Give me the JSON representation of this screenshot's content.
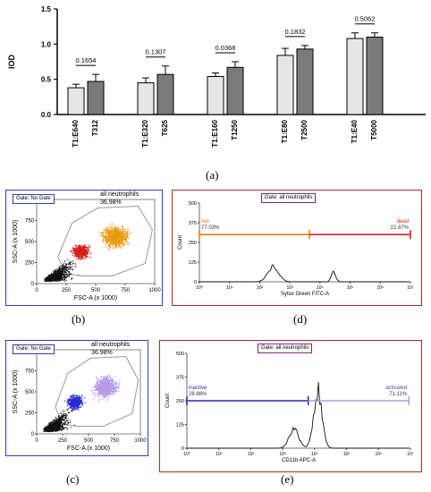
{
  "panel_letters": {
    "a": "(a)",
    "b": "(b)",
    "c": "(c)",
    "d": "(d)",
    "e": "(e)"
  },
  "chart_data": [
    {
      "type": "bar",
      "panel": "a",
      "ylabel": "IOD",
      "ylim": [
        0.0,
        1.5
      ],
      "yticks": [
        "0.0",
        "0.5",
        "1.0",
        "1.5"
      ],
      "categories": [
        "T1:E640",
        "T312",
        "T1:E320",
        "T625",
        "T1:E160",
        "T1250",
        "T1:E80",
        "T2500",
        "T1:E40",
        "T5000"
      ],
      "values": [
        0.38,
        0.47,
        0.45,
        0.57,
        0.54,
        0.67,
        0.84,
        0.93,
        1.08,
        1.1
      ],
      "errors": [
        0.05,
        0.1,
        0.07,
        0.12,
        0.05,
        0.08,
        0.1,
        0.05,
        0.08,
        0.06
      ],
      "colors": [
        "#e6e6e6",
        "#7a7a7a",
        "#e6e6e6",
        "#7a7a7a",
        "#e6e6e6",
        "#7a7a7a",
        "#e6e6e6",
        "#7a7a7a",
        "#e6e6e6",
        "#7a7a7a"
      ],
      "pvalues": [
        "0.1654",
        "0.1307",
        "0.0368",
        "0.1832",
        "0.5062"
      ]
    },
    {
      "type": "scatter",
      "panel": "b",
      "gate_label": "Gate: No Gate",
      "population": "all neutrophils",
      "percent": "36.98%",
      "xlabel": "FSC-A (x 1000)",
      "ylabel": "SSC-A (x 1000)",
      "xticks": [
        "0",
        "250",
        "500",
        "750",
        "1000"
      ],
      "yticks": [
        "0",
        "250",
        "500",
        "750",
        "1000"
      ],
      "colors": [
        "#111111",
        "#d42020",
        "#e89a10"
      ]
    },
    {
      "type": "line",
      "panel": "d",
      "gate_label": "Gate: all neutrophils",
      "xlabel": "Sytox Green FITC-A",
      "ylabel": "Count",
      "yticks": [
        "0",
        "125",
        "250",
        "375",
        "500"
      ],
      "xticks": [
        "10⁰",
        "10¹",
        "10²",
        "10³",
        "10⁴",
        "10⁵",
        "10⁶",
        "10⁷"
      ],
      "regions": [
        {
          "name": "live",
          "percent": "77.03%",
          "color": "#f07a10"
        },
        {
          "name": "dead",
          "percent": "22.87%",
          "color": "#e02020"
        }
      ]
    },
    {
      "type": "scatter",
      "panel": "c",
      "gate_label": "Gate: No Gate",
      "population": "all neutrophils",
      "percent": "36.98%",
      "xlabel": "FSC-A (x 1000)",
      "ylabel": "SSC-A (x 1000)",
      "xticks": [
        "0",
        "250",
        "500",
        "750",
        "1000"
      ],
      "yticks": [
        "0",
        "250",
        "500",
        "750",
        "1000"
      ],
      "colors": [
        "#111111",
        "#2a2ad0",
        "#b49ae8"
      ]
    },
    {
      "type": "line",
      "panel": "e",
      "gate_label": "Gate: all neutrophils",
      "xlabel": "CD11b APC-A",
      "ylabel": "Count",
      "yticks": [
        "0",
        "125",
        "250",
        "375",
        "500"
      ],
      "xticks": [
        "10⁰",
        "10¹",
        "10²",
        "10³",
        "10⁴",
        "10⁵",
        "10⁶",
        "10⁷"
      ],
      "regions": [
        {
          "name": "inactive",
          "percent": "28.86%",
          "color": "#2a2ab0"
        },
        {
          "name": "activated",
          "percent": "71.11%",
          "color": "#b49ae8"
        }
      ]
    }
  ]
}
